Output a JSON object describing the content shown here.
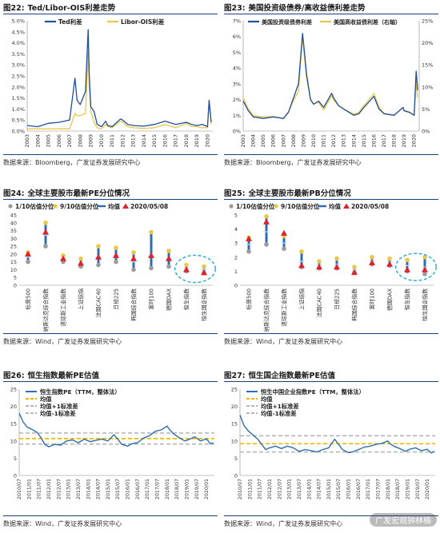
{
  "panels": [
    {
      "num": "图22:",
      "title": "Ted/Libor-OIS利差走势",
      "source": "数据来源：Bloomberg，广发证券发展研究中心"
    },
    {
      "num": "图23:",
      "title": "美国投资级债券/高收益债利差走势",
      "source": "数据来源：Bloomberg，广发证券发展研究中心"
    },
    {
      "num": "图24:",
      "title": "全球主要股市最新PE分位情况",
      "source": "数据来源：Wind，广发证券发展研究中心"
    },
    {
      "num": "图25:",
      "title": "全球主要股市最新PB分位情况",
      "source": "数据来源：Wind，广发证券发展研究中心"
    },
    {
      "num": "图26:",
      "title": "恒生指数最新PE估值",
      "source": "数据来源：Wind，广发证券发展研究中心"
    },
    {
      "num": "图27:",
      "title": "恒生国企指数最新PE估值",
      "source": "数据来源：Wind，广发证券发展研究中心"
    }
  ],
  "watermark": "广发宏观钟林楠",
  "colors": {
    "navy": "#1f4e9a",
    "gold": "#e8c84a",
    "blue": "#2e6db4",
    "gray": "#9a9a9a",
    "red": "#e0202a",
    "cyan": "#2aa7d8",
    "dash_gray": "#b5b5b5",
    "dash_gold": "#f0b400"
  },
  "chart_data": [
    {
      "type": "line",
      "title": "Ted/Libor-OIS利差走势",
      "ylim": [
        0,
        5.0
      ],
      "yticks": [
        "0.0%",
        "0.5%",
        "1.0%",
        "1.5%",
        "2.0%",
        "2.5%",
        "3.0%",
        "3.5%",
        "4.0%",
        "4.5%",
        "5.0%"
      ],
      "xticks": [
        "2003",
        "2004",
        "2005",
        "2006",
        "2007",
        "2008",
        "2009",
        "2010",
        "2011",
        "2012",
        "2013",
        "2014",
        "2015",
        "2016",
        "2017",
        "2018",
        "2019",
        "2020"
      ],
      "legend": [
        "Ted利差",
        "Libor-OIS利差"
      ],
      "series": [
        {
          "name": "Ted利差",
          "x": [
            2003.0,
            2004.0,
            2005.0,
            2006.0,
            2007.0,
            2007.5,
            2007.7,
            2008.0,
            2008.5,
            2008.75,
            2008.85,
            2009.0,
            2009.3,
            2009.6,
            2010.0,
            2010.4,
            2010.6,
            2011.0,
            2011.8,
            2012.0,
            2012.5,
            2013.0,
            2014.0,
            2015.0,
            2016.0,
            2017.0,
            2018.0,
            2018.5,
            2019.0,
            2019.5,
            2020.0,
            2020.15,
            2020.25,
            2020.35
          ],
          "values": [
            0.25,
            0.2,
            0.35,
            0.4,
            0.5,
            2.4,
            1.4,
            1.2,
            1.8,
            4.6,
            2.5,
            1.1,
            0.9,
            0.3,
            0.2,
            0.45,
            0.25,
            0.2,
            0.55,
            0.5,
            0.3,
            0.25,
            0.22,
            0.3,
            0.45,
            0.3,
            0.4,
            0.3,
            0.25,
            0.3,
            0.2,
            1.4,
            0.9,
            0.4
          ]
        },
        {
          "name": "Libor-OIS利差",
          "x": [
            2003.0,
            2004.0,
            2005.0,
            2006.0,
            2007.0,
            2007.5,
            2007.7,
            2008.0,
            2008.5,
            2008.75,
            2008.85,
            2009.0,
            2009.3,
            2009.6,
            2010.0,
            2010.4,
            2010.6,
            2011.0,
            2011.8,
            2012.0,
            2012.5,
            2013.0,
            2014.0,
            2015.0,
            2016.0,
            2017.0,
            2018.0,
            2018.5,
            2019.0,
            2019.5,
            2020.0,
            2020.15,
            2020.25,
            2020.35
          ],
          "values": [
            0.1,
            0.1,
            0.1,
            0.1,
            0.1,
            0.8,
            0.7,
            0.7,
            0.8,
            3.6,
            2.0,
            0.9,
            0.4,
            0.15,
            0.1,
            0.3,
            0.2,
            0.15,
            0.45,
            0.4,
            0.2,
            0.15,
            0.12,
            0.15,
            0.3,
            0.15,
            0.35,
            0.2,
            0.2,
            0.15,
            0.15,
            1.3,
            0.8,
            0.3
          ]
        }
      ]
    },
    {
      "type": "line",
      "title": "美国投资级债券/高收益债利差走势",
      "ylim_left": [
        0,
        7
      ],
      "ylim_right": [
        0,
        25
      ],
      "yticks_left": [
        "0%",
        "1%",
        "2%",
        "3%",
        "4%",
        "5%",
        "6%",
        "7%"
      ],
      "yticks_right": [
        "0%",
        "5%",
        "10%",
        "15%",
        "20%",
        "25%"
      ],
      "xticks": [
        "2003",
        "2004",
        "2005",
        "2006",
        "2007",
        "2008",
        "2009",
        "2010",
        "2011",
        "2012",
        "2013",
        "2014",
        "2015",
        "2016",
        "2017",
        "2018",
        "2019",
        "2020"
      ],
      "legend": [
        "美国投资级债券利差",
        "美国高收益债利差（右轴）"
      ],
      "series": [
        {
          "name": "美国投资级债券利差",
          "axis": "left",
          "x": [
            2003.0,
            2003.5,
            2004.0,
            2005.0,
            2006.0,
            2007.0,
            2007.5,
            2008.0,
            2008.5,
            2008.9,
            2009.0,
            2009.3,
            2009.7,
            2010.0,
            2010.5,
            2011.0,
            2011.8,
            2012.0,
            2012.5,
            2013.0,
            2014.0,
            2014.5,
            2015.0,
            2016.0,
            2016.5,
            2017.0,
            2018.0,
            2018.9,
            2019.0,
            2019.5,
            2020.0,
            2020.2,
            2020.35
          ],
          "values": [
            1.9,
            1.3,
            0.9,
            0.8,
            0.9,
            0.8,
            1.2,
            2.1,
            3.0,
            6.2,
            5.6,
            3.6,
            2.0,
            1.7,
            1.9,
            1.5,
            2.4,
            2.1,
            1.6,
            1.4,
            1.0,
            1.1,
            1.5,
            2.2,
            1.4,
            1.1,
            1.0,
            1.5,
            1.3,
            1.2,
            1.0,
            3.8,
            2.6
          ]
        },
        {
          "name": "美国高收益债利差（右轴）",
          "axis": "right",
          "x": [
            2003.0,
            2003.5,
            2004.0,
            2005.0,
            2006.0,
            2007.0,
            2007.5,
            2008.0,
            2008.5,
            2008.9,
            2009.0,
            2009.3,
            2009.7,
            2010.0,
            2010.5,
            2011.0,
            2011.8,
            2012.0,
            2012.5,
            2013.0,
            2014.0,
            2014.5,
            2015.0,
            2016.0,
            2016.5,
            2017.0,
            2018.0,
            2018.9,
            2019.0,
            2019.5,
            2020.0,
            2020.2,
            2020.35
          ],
          "values": [
            7.5,
            5.0,
            3.5,
            3.2,
            3.3,
            2.8,
            4.2,
            7.0,
            9.0,
            21.5,
            19.0,
            12.0,
            7.0,
            6.2,
            6.5,
            4.8,
            8.0,
            7.0,
            5.8,
            5.0,
            3.8,
            4.2,
            5.8,
            8.5,
            5.5,
            4.0,
            3.6,
            5.3,
            4.5,
            4.2,
            3.7,
            11.0,
            7.5
          ]
        }
      ]
    },
    {
      "type": "scatter",
      "title": "全球主要股市最新PE分位情况",
      "ylim": [
        0,
        45
      ],
      "yticks": [
        "0",
        "5",
        "10",
        "15",
        "20",
        "25",
        "30",
        "35",
        "40",
        "45"
      ],
      "legend": [
        "1/10估值分位",
        "9/10估值分位",
        "均值",
        "2020/05/08"
      ],
      "categories": [
        "标普500",
        "纳斯达克综合指数",
        "道琼斯工业指数",
        "上证综指",
        "法国CAC40",
        "日经225",
        "韩国综合指数",
        "富时100",
        "德国DAX",
        "恒生指数",
        "恒生国企指数"
      ],
      "series": [
        {
          "name": "1/10估值分位",
          "values": [
            15,
            25,
            15,
            12,
            13,
            15,
            10,
            11,
            12,
            9,
            8
          ]
        },
        {
          "name": "9/10估值分位",
          "values": [
            21,
            40,
            19,
            17,
            25,
            24,
            21,
            34,
            22,
            13,
            12
          ]
        },
        {
          "name": "均值",
          "values": [
            18,
            32,
            17,
            14,
            18,
            19,
            15,
            20,
            17,
            11,
            10
          ]
        },
        {
          "name": "2020/05/08",
          "values": [
            20,
            34,
            17,
            14,
            18,
            19,
            17,
            19,
            17,
            10,
            8
          ]
        }
      ],
      "highlight": [
        "恒生指数",
        "恒生国企指数"
      ]
    },
    {
      "type": "scatter",
      "title": "全球主要股市最新PB分位情况",
      "ylim": [
        0,
        5
      ],
      "yticks": [
        "0",
        "1",
        "2",
        "3",
        "4",
        "5"
      ],
      "legend": [
        "1/10估值分位",
        "9/10估值分位",
        "均值",
        "2020/05/08"
      ],
      "categories": [
        "标普500",
        "纳斯达克综合指数",
        "道琼斯工业指数",
        "上证综指",
        "法国CAC40",
        "日经225",
        "韩国综合指数",
        "富时100",
        "德国DAX",
        "恒生指数",
        "恒生国企指数"
      ],
      "series": [
        {
          "name": "1/10估值分位",
          "values": [
            2.4,
            2.9,
            2.6,
            1.3,
            1.2,
            1.2,
            0.9,
            1.5,
            1.4,
            1.0,
            0.8
          ]
        },
        {
          "name": "9/10估值分位",
          "values": [
            3.4,
            4.9,
            3.5,
            2.4,
            1.7,
            1.9,
            1.3,
            2.0,
            1.9,
            1.8,
            2.0
          ]
        },
        {
          "name": "均值",
          "values": [
            2.9,
            3.8,
            3.0,
            1.7,
            1.45,
            1.5,
            1.1,
            1.75,
            1.65,
            1.4,
            1.3
          ]
        },
        {
          "name": "2020/05/08",
          "values": [
            3.3,
            4.5,
            3.7,
            1.4,
            1.3,
            1.3,
            0.9,
            1.6,
            1.5,
            1.1,
            1.1
          ]
        }
      ],
      "highlight": [
        "恒生指数",
        "恒生国企指数"
      ]
    },
    {
      "type": "line",
      "title": "恒生指数最新PE估值",
      "ylim": [
        0,
        25
      ],
      "yticks": [
        "0",
        "5",
        "10",
        "15",
        "20",
        "25"
      ],
      "xticks": [
        "2010/07",
        "2011/01",
        "2011/07",
        "2012/01",
        "2012/07",
        "2013/01",
        "2013/07",
        "2014/01",
        "2014/07",
        "2015/01",
        "2015/07",
        "2016/01",
        "2016/07",
        "2017/01",
        "2017/07",
        "2018/01",
        "2018/07",
        "2019/01",
        "2019/07",
        "2020/01"
      ],
      "legend": [
        "恒生指数PE（TTM，整体法）",
        "均值",
        "均值+1标准差",
        "均值-1标准差"
      ],
      "reference_lines": {
        "mean": 10.7,
        "plus_1sd": 12.3,
        "minus_1sd": 9.1
      },
      "series": [
        {
          "name": "恒生指数PE（TTM，整体法）",
          "x": [
            2010.5,
            2010.7,
            2010.9,
            2011.1,
            2011.4,
            2011.6,
            2011.8,
            2012.0,
            2012.3,
            2012.6,
            2012.9,
            2013.2,
            2013.5,
            2013.8,
            2014.1,
            2014.4,
            2014.7,
            2015.0,
            2015.3,
            2015.5,
            2015.7,
            2016.0,
            2016.2,
            2016.5,
            2016.8,
            2017.1,
            2017.4,
            2017.7,
            2018.0,
            2018.1,
            2018.3,
            2018.6,
            2018.9,
            2019.1,
            2019.4,
            2019.7,
            2020.0,
            2020.2,
            2020.35
          ],
          "values": [
            18.0,
            15.5,
            14.0,
            13.5,
            12.5,
            11.0,
            9.0,
            8.3,
            9.0,
            8.8,
            10.0,
            10.3,
            9.5,
            10.5,
            9.8,
            10.2,
            10.5,
            10.0,
            11.8,
            10.5,
            9.0,
            8.5,
            9.2,
            9.5,
            10.8,
            11.5,
            12.8,
            13.2,
            14.3,
            13.5,
            12.2,
            11.0,
            10.0,
            10.4,
            11.2,
            10.0,
            10.6,
            9.2,
            9.5
          ]
        }
      ]
    },
    {
      "type": "line",
      "title": "恒生国企指数最新PE估值",
      "ylim": [
        0,
        25
      ],
      "yticks": [
        "0",
        "5",
        "10",
        "15",
        "20",
        "25"
      ],
      "xticks": [
        "2010/07",
        "2011/01",
        "2011/07",
        "2012/01",
        "2012/07",
        "2013/01",
        "2013/07",
        "2014/01",
        "2014/07",
        "2015/01",
        "2015/07",
        "2016/01",
        "2016/07",
        "2017/01",
        "2017/07",
        "2018/01",
        "2018/07",
        "2019/01",
        "2019/07",
        "2020/01"
      ],
      "legend": [
        "恒生中国企业指数PE（TTM，整体法）",
        "均值",
        "均值+1标准差",
        "均值-1标准差"
      ],
      "reference_lines": {
        "mean": 9.2,
        "plus_1sd": 11.5,
        "minus_1sd": 6.8
      },
      "series": [
        {
          "name": "恒生中国企业指数PE（TTM，整体法）",
          "x": [
            2010.5,
            2010.7,
            2010.9,
            2011.1,
            2011.4,
            2011.6,
            2011.8,
            2012.0,
            2012.3,
            2012.6,
            2012.9,
            2013.2,
            2013.5,
            2013.8,
            2014.1,
            2014.4,
            2014.7,
            2015.0,
            2015.3,
            2015.5,
            2015.7,
            2016.0,
            2016.2,
            2016.5,
            2016.8,
            2017.1,
            2017.4,
            2017.7,
            2018.0,
            2018.1,
            2018.3,
            2018.6,
            2018.9,
            2019.1,
            2019.4,
            2019.7,
            2020.0,
            2020.2,
            2020.35
          ],
          "values": [
            17.5,
            14.5,
            13.0,
            12.0,
            10.5,
            9.0,
            7.5,
            8.0,
            8.5,
            7.8,
            8.5,
            8.0,
            7.0,
            7.5,
            7.2,
            6.8,
            7.5,
            8.0,
            10.5,
            9.0,
            7.5,
            6.6,
            6.8,
            7.5,
            8.2,
            8.5,
            9.0,
            9.3,
            10.0,
            9.2,
            8.5,
            7.8,
            7.0,
            7.6,
            8.0,
            7.2,
            7.6,
            6.5,
            7.0
          ]
        }
      ]
    }
  ]
}
